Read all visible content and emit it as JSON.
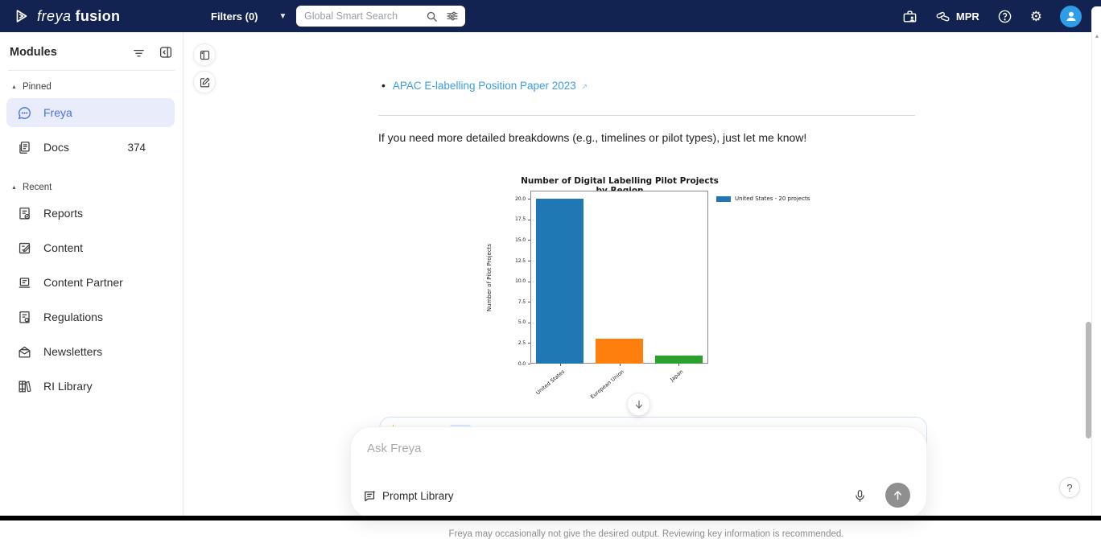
{
  "navbar": {
    "brand_freya": "freya",
    "brand_fusion": "fusion",
    "filters_label": "Filters (0)",
    "search_placeholder": "Global Smart Search",
    "mpr_label": "MPR"
  },
  "sidebar": {
    "title": "Modules",
    "pinned": {
      "label": "Pinned",
      "items": [
        {
          "label": "Freya",
          "icon": "chat-bubble-icon",
          "selected": true
        },
        {
          "label": "Docs",
          "icon": "documents-icon",
          "count": "374"
        }
      ]
    },
    "recent": {
      "label": "Recent",
      "items": [
        {
          "label": "Reports",
          "icon": "report-check-icon"
        },
        {
          "label": "Content",
          "icon": "content-edit-icon"
        },
        {
          "label": "Content Partner",
          "icon": "device-icon"
        },
        {
          "label": "Regulations",
          "icon": "regulation-doc-icon"
        },
        {
          "label": "Newsletters",
          "icon": "envelope-icon"
        },
        {
          "label": "RI Library",
          "icon": "books-icon"
        }
      ]
    }
  },
  "chat": {
    "citation_link": "APAC E-labelling Position Paper 2023",
    "message": "If you need more detailed breakdowns (e.g., timelines or pilot types), just let me know!",
    "input_placeholder": "Ask Freya",
    "prompt_library_label": "Prompt Library",
    "disclaimer": "Freya may occasionally not give the desired output. Reviewing key information is recommended."
  },
  "chart_data": {
    "type": "bar",
    "title": "Number of Digital Labelling Pilot Projects by Region",
    "categories": [
      "United States",
      "European Union",
      "Japan"
    ],
    "values": [
      20,
      3,
      1
    ],
    "bar_colors": [
      "#1f77b4",
      "#ff7f0e",
      "#2ca02c"
    ],
    "xlabel": "",
    "ylabel": "Number of Pilot Projects",
    "ytick_labels": [
      "0.0",
      "2.5",
      "5.0",
      "7.5",
      "10.0",
      "12.5",
      "15.0",
      "17.5",
      "20.0"
    ],
    "ylim": [
      0,
      21
    ],
    "grid": false,
    "legend": [
      {
        "label": "United States - 20 projects",
        "color": "#1f77b4"
      }
    ],
    "legend_position": "outside-right-top"
  },
  "colors": {
    "navbar_bg": "#132351",
    "accent_blue": "#4a6fe3",
    "link_blue": "#3b9de4",
    "selected_item_bg": "#e9edfb",
    "avatar_bg": "#2f9ce8",
    "send_button_bg": "#8f8f8f",
    "bar_blue": "#1f77b4",
    "bar_orange": "#ff7f0e",
    "bar_green": "#2ca02c"
  }
}
